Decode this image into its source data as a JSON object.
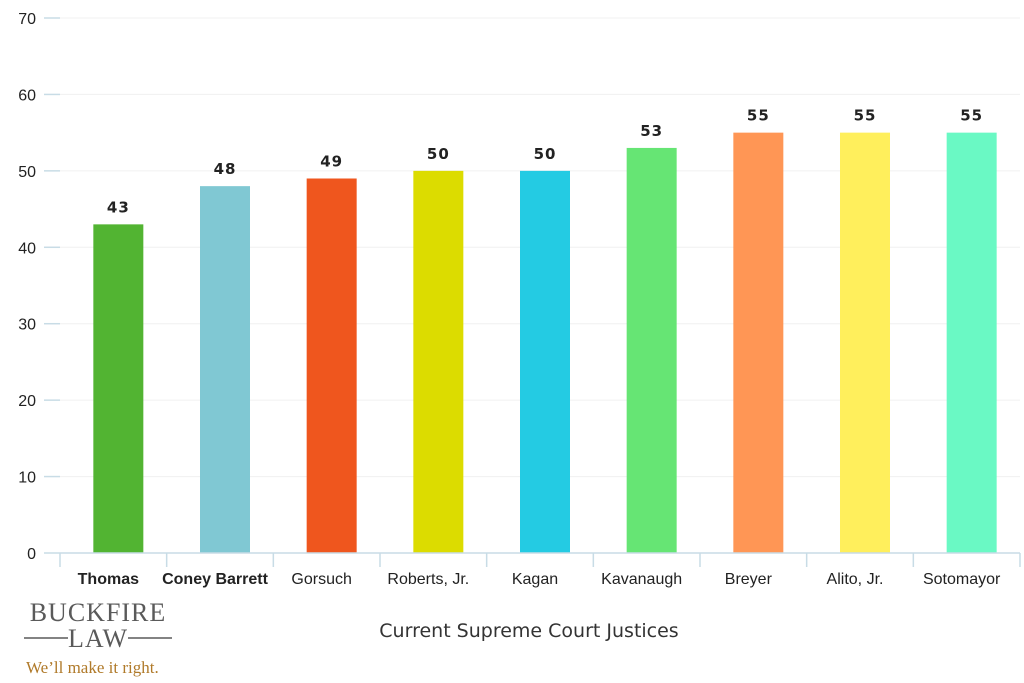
{
  "chart_data": {
    "type": "bar",
    "title": "",
    "xlabel": "Current Supreme Court Justices",
    "ylabel": "",
    "ylim": [
      0,
      70
    ],
    "yticks": [
      0,
      10,
      20,
      30,
      40,
      50,
      60,
      70
    ],
    "grid": true,
    "categories": [
      "Thomas",
      "Coney Barrett",
      "Gorsuch",
      "Roberts, Jr.",
      "Kagan",
      "Kavanaugh",
      "Breyer",
      "Alito, Jr.",
      "Sotomayor"
    ],
    "values": [
      43,
      48,
      49,
      50,
      50,
      53,
      55,
      55,
      55
    ],
    "value_labels": [
      "43",
      "48",
      "49",
      "50",
      "50",
      "53",
      "55",
      "55",
      "55"
    ],
    "bold_categories": [
      "Thomas",
      "Coney Barrett"
    ],
    "colors": [
      "#52b432",
      "#80c8d3",
      "#ef561e",
      "#dcdc00",
      "#24cbe3",
      "#66e574",
      "#ff9655",
      "#ffef5c",
      "#6af9c4"
    ]
  },
  "logo": {
    "line1": "BUCKFIRE",
    "line2": "LAW",
    "tagline": "We’ll make it right."
  }
}
